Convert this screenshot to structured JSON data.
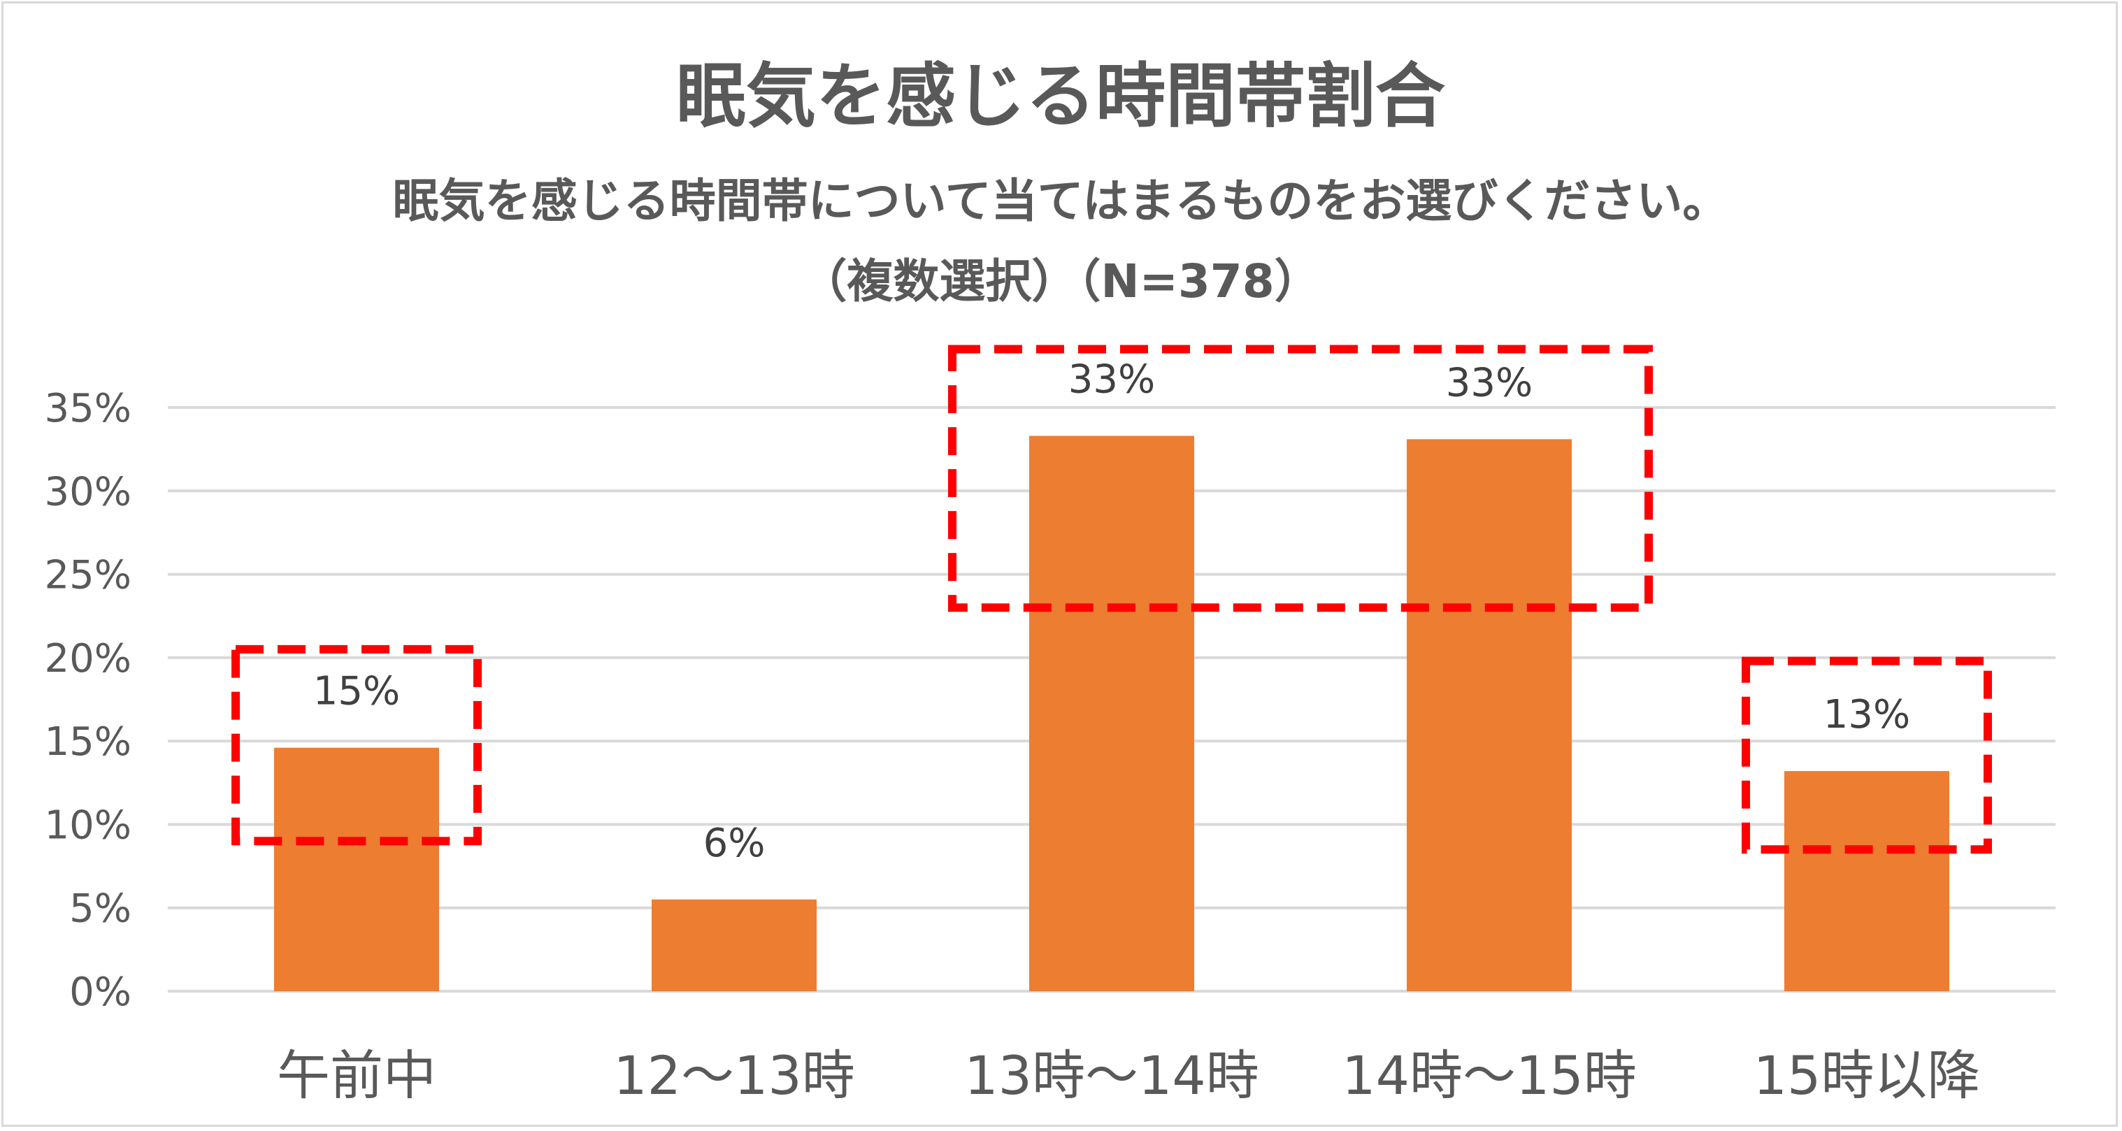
{
  "chart_data": {
    "type": "bar",
    "title": "眠気を感じる時間帯割合",
    "subtitle_line1": "眠気を感じる時間帯について当てはまるものをお選びください。",
    "subtitle_line2": "（複数選択）（N=378）",
    "categories": [
      "午前中",
      "12～13時",
      "13時～14時",
      "14時～15時",
      "15時以降"
    ],
    "values": [
      14.6,
      5.5,
      33.3,
      33.1,
      13.2
    ],
    "data_labels": [
      "15%",
      "6%",
      "33%",
      "33%",
      "13%"
    ],
    "yticks": [
      "0%",
      "5%",
      "10%",
      "15%",
      "20%",
      "25%",
      "30%",
      "35%"
    ],
    "ylim": [
      0,
      35
    ],
    "grid": true,
    "bar_color": "#ED7D31",
    "highlight_color": "#FF0000",
    "highlight_groups": [
      {
        "categories": [
          "午前中"
        ],
        "y_range": [
          9,
          20.5
        ]
      },
      {
        "categories": [
          "13時～14時",
          "14時～15時"
        ],
        "y_range": [
          23,
          38.5
        ]
      },
      {
        "categories": [
          "15時以降"
        ],
        "y_range": [
          8.5,
          19.8
        ]
      }
    ]
  }
}
